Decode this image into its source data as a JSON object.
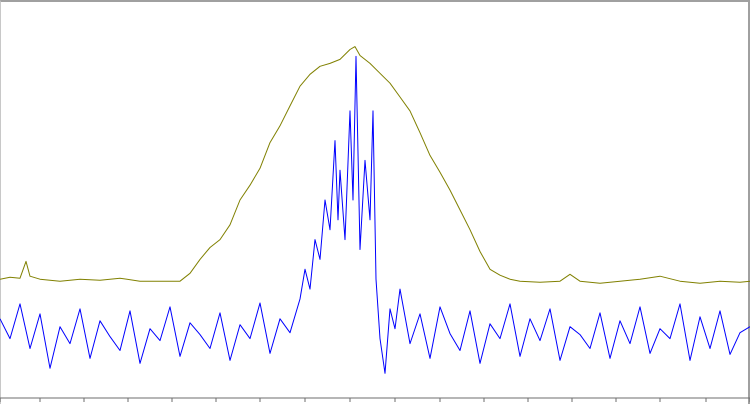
{
  "chart_data": {
    "type": "line",
    "title": "",
    "xlabel": "",
    "ylabel": "",
    "grid": false,
    "legend": "none",
    "xlim": [
      0,
      750
    ],
    "ylim": [
      0,
      400
    ],
    "x_ticks": [
      0,
      40,
      84,
      128,
      172,
      216,
      260,
      305,
      350,
      395,
      440,
      484,
      528,
      572,
      616,
      660,
      706,
      750
    ],
    "series": [
      {
        "color": "#808000",
        "x": [
          0,
          10,
          20,
          26,
          30,
          40,
          60,
          80,
          100,
          120,
          140,
          160,
          180,
          190,
          200,
          210,
          220,
          230,
          240,
          250,
          260,
          270,
          280,
          290,
          300,
          310,
          320,
          330,
          340,
          350,
          355,
          360,
          370,
          380,
          390,
          400,
          410,
          420,
          430,
          440,
          450,
          460,
          470,
          480,
          490,
          500,
          510,
          520,
          540,
          560,
          570,
          580,
          600,
          620,
          640,
          660,
          680,
          700,
          720,
          740,
          750
        ],
        "y": [
          120,
          122,
          121,
          138,
          123,
          120,
          118,
          120,
          119,
          121,
          118,
          118,
          118,
          126,
          140,
          152,
          160,
          175,
          200,
          215,
          232,
          258,
          275,
          295,
          315,
          327,
          335,
          338,
          342,
          352,
          355,
          346,
          338,
          328,
          318,
          304,
          290,
          268,
          245,
          228,
          210,
          190,
          170,
          148,
          130,
          124,
          120,
          118,
          117,
          118,
          125,
          118,
          116,
          118,
          120,
          123,
          118,
          116,
          118,
          117,
          118
        ]
      },
      {
        "color": "#0000ff",
        "x": [
          0,
          10,
          20,
          30,
          40,
          50,
          60,
          70,
          80,
          90,
          100,
          110,
          120,
          130,
          140,
          150,
          160,
          170,
          180,
          190,
          200,
          210,
          220,
          230,
          240,
          250,
          260,
          270,
          280,
          290,
          300,
          305,
          310,
          315,
          320,
          325,
          330,
          335,
          338,
          340,
          345,
          350,
          353,
          356,
          360,
          365,
          370,
          373,
          376,
          380,
          385,
          390,
          395,
          400,
          410,
          420,
          430,
          440,
          450,
          460,
          470,
          480,
          490,
          500,
          510,
          520,
          530,
          540,
          550,
          560,
          570,
          580,
          590,
          600,
          610,
          620,
          630,
          640,
          650,
          660,
          670,
          680,
          690,
          700,
          710,
          720,
          730,
          740,
          750
        ],
        "y": [
          80,
          60,
          95,
          50,
          85,
          30,
          72,
          55,
          90,
          40,
          78,
          62,
          48,
          88,
          35,
          70,
          58,
          92,
          42,
          76,
          64,
          50,
          86,
          38,
          74,
          60,
          96,
          45,
          80,
          66,
          100,
          130,
          110,
          160,
          140,
          200,
          170,
          260,
          180,
          230,
          160,
          290,
          200,
          345,
          150,
          240,
          180,
          290,
          120,
          60,
          25,
          90,
          70,
          110,
          55,
          85,
          40,
          92,
          65,
          48,
          88,
          35,
          75,
          60,
          95,
          42,
          80,
          58,
          90,
          38,
          72,
          64,
          50,
          86,
          40,
          78,
          55,
          92,
          45,
          70,
          60,
          95,
          38,
          82,
          50,
          88,
          44,
          66,
          72
        ]
      }
    ]
  }
}
